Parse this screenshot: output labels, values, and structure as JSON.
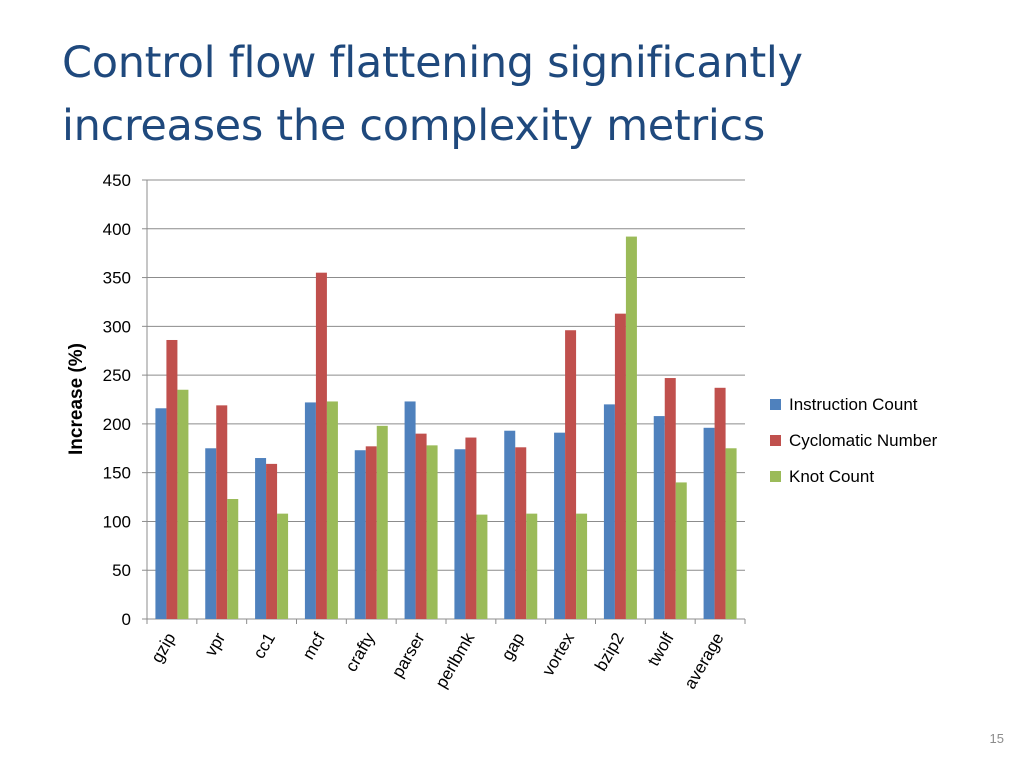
{
  "slide": {
    "title_line1": "Control flow flattening significantly",
    "title_line2": "increases the complexity metrics",
    "page_number": "15"
  },
  "chart_data": {
    "type": "bar",
    "title": "",
    "xlabel": "",
    "ylabel": "Increase (%)",
    "ylim": [
      0,
      450
    ],
    "yticks": [
      0,
      50,
      100,
      150,
      200,
      250,
      300,
      350,
      400,
      450
    ],
    "grid": true,
    "legend_position": "right",
    "categories": [
      "gzip",
      "vpr",
      "cc1",
      "mcf",
      "crafty",
      "parser",
      "perlbmk",
      "gap",
      "vortex",
      "bzip2",
      "twolf",
      "average"
    ],
    "series": [
      {
        "name": "Instruction Count",
        "color": "#4f81bd",
        "values": [
          216,
          175,
          165,
          222,
          173,
          223,
          174,
          193,
          191,
          220,
          208,
          196
        ]
      },
      {
        "name": "Cyclomatic Number",
        "color": "#c0504d",
        "values": [
          286,
          219,
          159,
          355,
          177,
          190,
          186,
          176,
          296,
          313,
          247,
          237
        ]
      },
      {
        "name": "Knot Count",
        "color": "#9bbb59",
        "values": [
          235,
          123,
          108,
          223,
          198,
          178,
          107,
          108,
          108,
          392,
          140,
          175
        ]
      }
    ]
  }
}
